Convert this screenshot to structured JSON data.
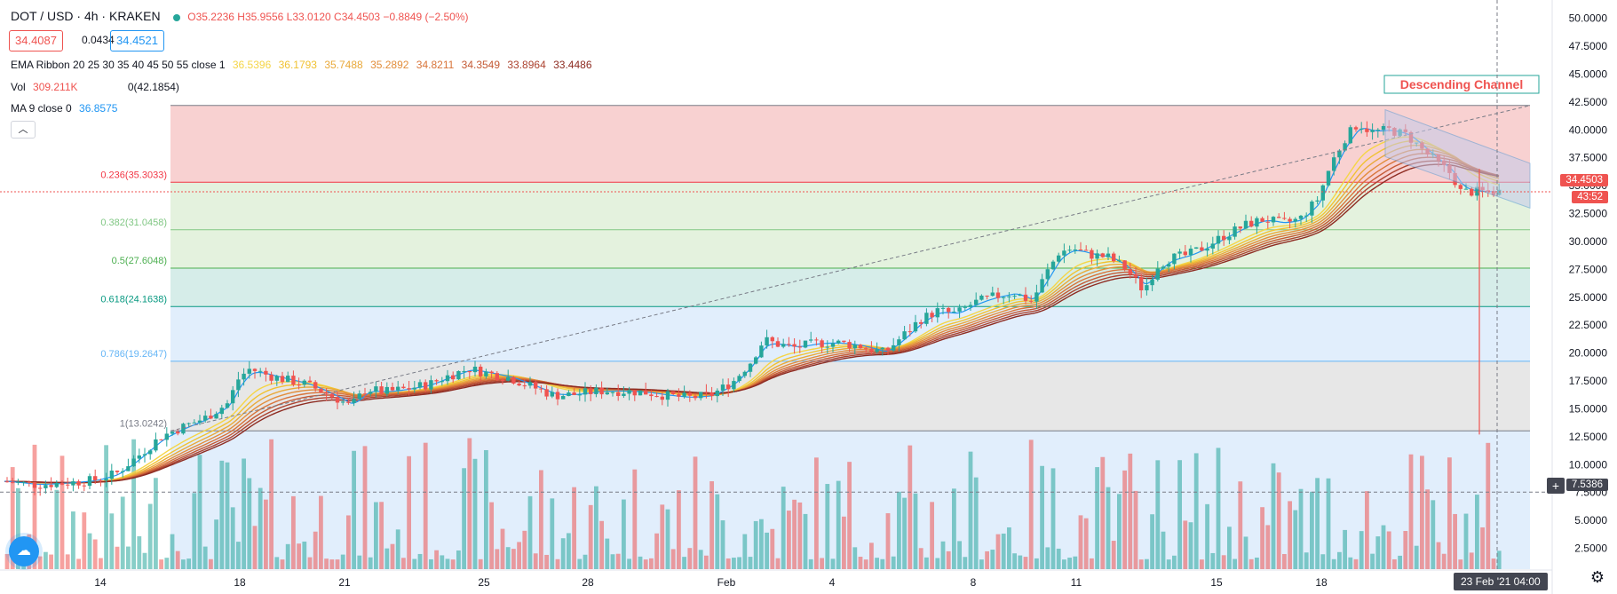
{
  "header": {
    "symbol": "DOT / USD · 4h · KRAKEN",
    "ohlc": "O35.2236 H35.9556 L33.0120 C34.4503 −0.8849 (−2.50%)",
    "bid": "34.4087",
    "spread": "0.0434",
    "ask": "34.4521"
  },
  "indicators": {
    "ema_label": "EMA Ribbon 20 25 30 35 40 45 50 55 close 1",
    "ema_values": [
      "36.5396",
      "36.1793",
      "35.7488",
      "35.2892",
      "34.8211",
      "34.3549",
      "33.8964",
      "33.4486"
    ],
    "vol_label": "Vol",
    "vol_value": "309.211K",
    "vol_extra": "0(42.1854)",
    "ma_label": "MA 9 close 0",
    "ma_value": "36.8575",
    "collapse_icon": "chevron-up-icon"
  },
  "axis": {
    "current_price": "34.4503",
    "countdown": "43:52",
    "crosshair_price": "7.5386",
    "crosshair_date": "23 Feb '21   04:00"
  },
  "colors": {
    "up": "#26a69a",
    "down": "#ef5350",
    "fib_red": "#f7c9c9",
    "fib_green": "#dff0d8",
    "fib_teal": "#cfeae5",
    "fib_blue": "#dcebfb",
    "fib_gray": "#e3e3e3",
    "channel": "#c5cae9"
  },
  "chart_data": {
    "type": "candlestick",
    "symbol": "DOT / USD",
    "interval": "4h",
    "exchange": "KRAKEN",
    "y_ticks": [
      "50.0000",
      "47.5000",
      "45.0000",
      "42.5000",
      "40.0000",
      "37.5000",
      "35.0000",
      "32.5000",
      "30.0000",
      "27.5000",
      "25.0000",
      "22.5000",
      "20.0000",
      "17.5000",
      "15.0000",
      "12.5000",
      "10.0000",
      "7.5000",
      "5.0000",
      "2.5000"
    ],
    "ylim": [
      0,
      51
    ],
    "x_ticks": [
      "14",
      "18",
      "21",
      "25",
      "28",
      "Feb",
      "4",
      "8",
      "11",
      "15",
      "18"
    ],
    "fib_levels": [
      {
        "ratio": 0,
        "label": "0(42.1854)",
        "price": 42.1854
      },
      {
        "ratio": 0.236,
        "label": "0.236(35.3033)",
        "price": 35.3033
      },
      {
        "ratio": 0.382,
        "label": "0.382(31.0458)",
        "price": 31.0458
      },
      {
        "ratio": 0.5,
        "label": "0.5(27.6048)",
        "price": 27.6048
      },
      {
        "ratio": 0.618,
        "label": "0.618(24.1638)",
        "price": 24.1638
      },
      {
        "ratio": 0.786,
        "label": "0.786(19.2647)",
        "price": 19.2647
      },
      {
        "ratio": 1,
        "label": "1(13.0242)",
        "price": 13.0242
      }
    ],
    "annotations": [
      {
        "text": "Descending Channel"
      }
    ],
    "price_path": [
      [
        0,
        8.5
      ],
      [
        14,
        8.2
      ],
      [
        30,
        8.4
      ],
      [
        40,
        8.6
      ],
      [
        50,
        9.2
      ],
      [
        60,
        10.8
      ],
      [
        70,
        12.5
      ],
      [
        80,
        13.4
      ],
      [
        90,
        14.2
      ],
      [
        100,
        15.5
      ],
      [
        105,
        17.8
      ],
      [
        110,
        18.6
      ],
      [
        118,
        18.0
      ],
      [
        126,
        17.6
      ],
      [
        135,
        17.2
      ],
      [
        143,
        16.5
      ],
      [
        150,
        15.8
      ],
      [
        155,
        15.2
      ],
      [
        162,
        16.8
      ],
      [
        170,
        16.5
      ],
      [
        180,
        16.8
      ],
      [
        190,
        17.2
      ],
      [
        198,
        17.9
      ],
      [
        208,
        18.6
      ],
      [
        216,
        18.2
      ],
      [
        226,
        17.8
      ],
      [
        236,
        17.0
      ],
      [
        246,
        16.2
      ],
      [
        256,
        16.3
      ],
      [
        266,
        16.6
      ],
      [
        276,
        16.6
      ],
      [
        286,
        16.5
      ],
      [
        296,
        16.2
      ],
      [
        306,
        16.0
      ],
      [
        316,
        16.2
      ],
      [
        326,
        17.4
      ],
      [
        334,
        19.2
      ],
      [
        340,
        21.2
      ],
      [
        346,
        20.8
      ],
      [
        354,
        20.5
      ],
      [
        364,
        20.9
      ],
      [
        374,
        20.9
      ],
      [
        384,
        20.6
      ],
      [
        394,
        20.0
      ],
      [
        402,
        21.5
      ],
      [
        410,
        23.0
      ],
      [
        418,
        23.8
      ],
      [
        426,
        23.5
      ],
      [
        434,
        24.5
      ],
      [
        442,
        25.0
      ],
      [
        452,
        25.4
      ],
      [
        460,
        24.6
      ],
      [
        466,
        27.0
      ],
      [
        472,
        29.0
      ],
      [
        478,
        29.4
      ],
      [
        486,
        28.8
      ],
      [
        494,
        28.6
      ],
      [
        502,
        27.6
      ],
      [
        510,
        25.6
      ],
      [
        516,
        27.8
      ],
      [
        522,
        28.5
      ],
      [
        530,
        28.8
      ],
      [
        538,
        29.6
      ],
      [
        546,
        30.5
      ],
      [
        556,
        31.5
      ],
      [
        564,
        32.0
      ],
      [
        572,
        31.6
      ],
      [
        580,
        32.0
      ],
      [
        588,
        33.8
      ],
      [
        594,
        37.0
      ],
      [
        600,
        39.2
      ],
      [
        606,
        40.6
      ],
      [
        612,
        39.8
      ],
      [
        620,
        40.0
      ],
      [
        628,
        39.5
      ],
      [
        636,
        38.0
      ],
      [
        642,
        37.0
      ],
      [
        648,
        36.0
      ],
      [
        652,
        34.45
      ]
    ],
    "volume_note": "volume histogram bars, scale 0–42.1854"
  }
}
